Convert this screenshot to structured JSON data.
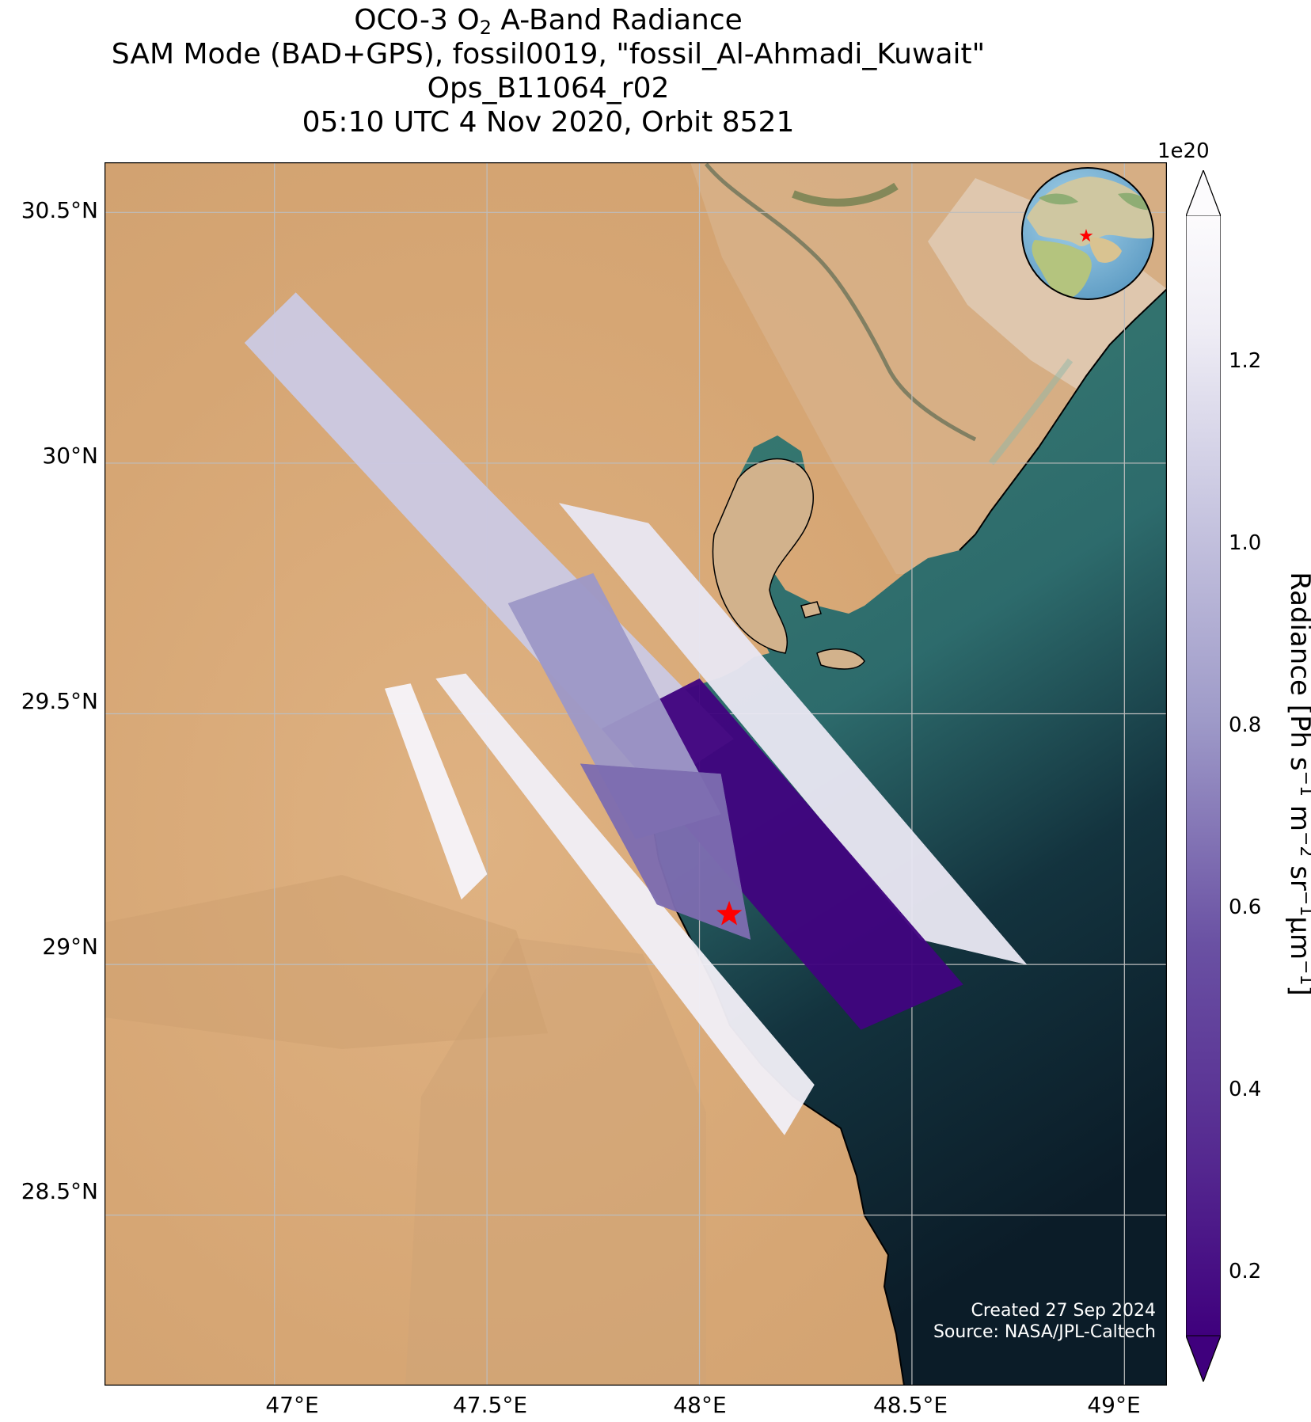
{
  "title": {
    "line1_prefix": "OCO-3 O",
    "line1_sub": "2",
    "line1_suffix": " A-Band Radiance",
    "line2": "SAM Mode (BAD+GPS), fossil0019, \"fossil_Al-Ahmadi_Kuwait\"",
    "line3": "Ops_B11064_r02",
    "line4": "05:10 UTC 4 Nov 2020, Orbit 8521"
  },
  "axes": {
    "lat_labels": [
      "30.5°N",
      "30°N",
      "29.5°N",
      "29°N",
      "28.5°N"
    ],
    "lon_labels": [
      "47°E",
      "47.5°E",
      "48°E",
      "48.5°E",
      "49°E"
    ],
    "lat_values": [
      30.5,
      30.0,
      29.5,
      29.0,
      28.5
    ],
    "lon_values": [
      47.0,
      47.5,
      48.0,
      48.5,
      49.0
    ],
    "lat_range": [
      28.16,
      30.6
    ],
    "lon_range": [
      46.6,
      49.1
    ],
    "grid": true
  },
  "colorbar": {
    "exponent_label": "1e20",
    "label_prefix": "Radiance [Ph s",
    "label_full": [
      "Radiance [Ph s",
      "−1",
      " m",
      "−2",
      " sr",
      "−1",
      "μm",
      "−1",
      "]"
    ],
    "ticks": [
      "0.2",
      "0.4",
      "0.6",
      "0.8",
      "1.0",
      "1.2"
    ],
    "tick_values": [
      0.2,
      0.4,
      0.6,
      0.8,
      1.0,
      1.2
    ],
    "range": [
      0.13,
      1.36
    ],
    "extend": "both",
    "colormap": "Purples_r",
    "color_low": "#3f007d",
    "color_high": "#fcfbfd"
  },
  "target": {
    "name": "fossil_Al-Ahmadi_Kuwait",
    "lat": 29.1,
    "lon": 48.07,
    "marker": "star-icon",
    "color": "#ff0000"
  },
  "credits": {
    "created": "Created 27 Sep 2024",
    "source": "Source: NASA/JPL-Caltech"
  },
  "colors": {
    "desert": "#d9ab7b",
    "sea": "#2c6f6b",
    "deep_sea": "#0c1f2b",
    "grid": "#bdbdbd"
  },
  "chart_data": {
    "type": "heatmap",
    "title": "OCO-3 O2 A-Band Radiance",
    "xlabel": "",
    "ylabel": "",
    "swaths": [
      {
        "corners": [
          [
            46.93,
            30.24
          ],
          [
            47.05,
            30.34
          ],
          [
            48.08,
            29.45
          ],
          [
            47.9,
            29.35
          ]
        ],
        "value": 1.05
      },
      {
        "corners": [
          [
            47.67,
            29.92
          ],
          [
            47.88,
            29.88
          ],
          [
            48.77,
            29.0
          ],
          [
            48.52,
            29.05
          ]
        ],
        "value": 1.2
      },
      {
        "corners": [
          [
            47.77,
            29.47
          ],
          [
            48.0,
            29.57
          ],
          [
            48.62,
            28.96
          ],
          [
            48.38,
            28.87
          ]
        ],
        "value": 0.15
      },
      {
        "corners": [
          [
            47.55,
            29.72
          ],
          [
            47.75,
            29.78
          ],
          [
            48.05,
            29.3
          ],
          [
            47.85,
            29.25
          ]
        ],
        "value": 0.8
      },
      {
        "corners": [
          [
            47.38,
            29.57
          ],
          [
            47.45,
            29.58
          ],
          [
            48.27,
            28.76
          ],
          [
            48.2,
            28.66
          ]
        ],
        "value": 1.25
      },
      {
        "corners": [
          [
            47.26,
            29.55
          ],
          [
            47.32,
            29.56
          ],
          [
            47.5,
            29.18
          ],
          [
            47.44,
            29.13
          ]
        ],
        "value": 1.3
      },
      {
        "corners": [
          [
            47.72,
            29.4
          ],
          [
            48.05,
            29.38
          ],
          [
            48.12,
            29.05
          ],
          [
            47.9,
            29.12
          ]
        ],
        "value": 0.65
      }
    ]
  }
}
